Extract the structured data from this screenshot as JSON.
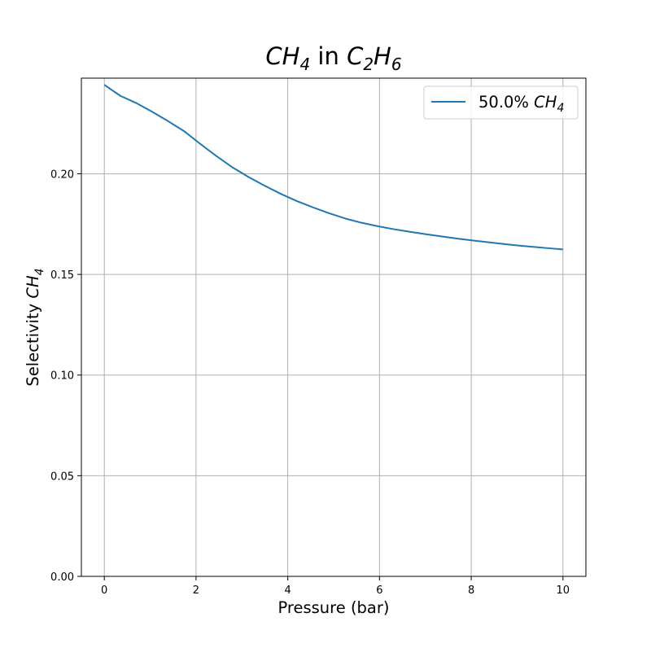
{
  "chart_data": {
    "type": "line",
    "title": {
      "main": "CH",
      "sub1": "4",
      "mid": " in ",
      "main2": "C",
      "sub2": "2",
      "main3": "H",
      "sub3": "6"
    },
    "xlabel": "Pressure (bar)",
    "ylabel": {
      "main": "Selectivity ",
      "italic": "CH",
      "sub": "4"
    },
    "xlim": [
      -0.5,
      10.5
    ],
    "ylim": [
      0.0,
      0.2475
    ],
    "xticks": [
      "0",
      "2",
      "4",
      "6",
      "8",
      "10"
    ],
    "yticks": [
      "0.00",
      "0.05",
      "0.10",
      "0.15",
      "0.20"
    ],
    "grid": true,
    "legend_position": "top-right",
    "series": [
      {
        "legend": {
          "prefix": "50.0% ",
          "italic": "CH",
          "sub": "4"
        },
        "color": "#1f77b4",
        "x": [
          0.0,
          0.35,
          0.7,
          1.05,
          1.4,
          1.75,
          2.1,
          2.45,
          2.8,
          3.15,
          3.5,
          3.85,
          4.2,
          4.55,
          4.9,
          5.25,
          5.6,
          5.95,
          6.3,
          6.65,
          7.0,
          7.35,
          7.7,
          8.05,
          8.4,
          8.75,
          9.1,
          9.45,
          9.8,
          10.0
        ],
        "y": [
          0.2442,
          0.2387,
          0.2351,
          0.2307,
          0.226,
          0.221,
          0.2147,
          0.2087,
          0.2031,
          0.1983,
          0.194,
          0.19,
          0.1864,
          0.1833,
          0.1804,
          0.1778,
          0.1757,
          0.174,
          0.1725,
          0.1712,
          0.17,
          0.1689,
          0.1678,
          0.1668,
          0.1659,
          0.165,
          0.1642,
          0.1635,
          0.1628,
          0.1624
        ]
      }
    ]
  }
}
